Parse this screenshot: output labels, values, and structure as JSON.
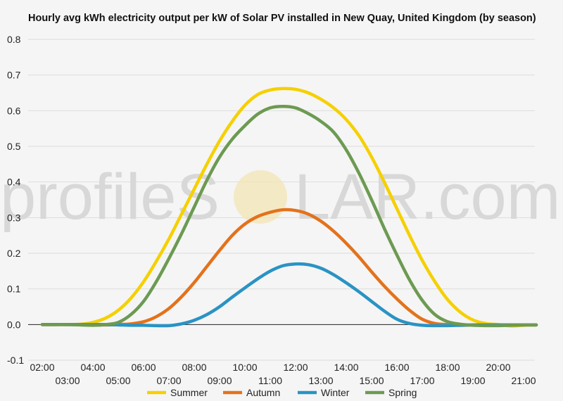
{
  "title": "Hourly avg kWh electricity output per kW of Solar PV installed in New Quay, United Kingdom (by season)",
  "watermark": {
    "left": "profileS",
    "right": "LAR.com"
  },
  "chart_data": {
    "type": "line",
    "title": "Hourly avg kWh electricity output per kW of Solar PV installed in New Quay, United Kingdom (by season)",
    "xlabel": "",
    "ylabel": "",
    "ylim": [
      -0.1,
      0.8
    ],
    "xlim": [
      2,
      21.5
    ],
    "y_ticks": [
      "-0.1",
      "0.0",
      "0.1",
      "0.2",
      "0.3",
      "0.4",
      "0.5",
      "0.6",
      "0.7",
      "0.8"
    ],
    "x_ticks": [
      "02:00",
      "03:00",
      "04:00",
      "05:00",
      "06:00",
      "07:00",
      "08:00",
      "09:00",
      "10:00",
      "11:00",
      "12:00",
      "13:00",
      "14:00",
      "15:00",
      "16:00",
      "17:00",
      "18:00",
      "19:00",
      "20:00",
      "21:00"
    ],
    "grid": true,
    "legend_position": "bottom",
    "x": [
      2,
      2.5,
      3,
      3.5,
      4,
      4.5,
      5,
      5.5,
      6,
      6.5,
      7,
      7.5,
      8,
      8.5,
      9,
      9.5,
      10,
      10.5,
      11,
      11.5,
      12,
      12.5,
      13,
      13.5,
      14,
      14.5,
      15,
      15.5,
      16,
      16.5,
      17,
      17.5,
      18,
      18.5,
      19,
      19.5,
      20,
      20.5,
      21,
      21.5
    ],
    "series": [
      {
        "name": "Summer",
        "color": "#f5d000",
        "values": [
          0,
          0,
          0,
          0.001,
          0.006,
          0.018,
          0.04,
          0.074,
          0.12,
          0.177,
          0.24,
          0.31,
          0.38,
          0.45,
          0.515,
          0.57,
          0.615,
          0.645,
          0.658,
          0.662,
          0.66,
          0.65,
          0.632,
          0.608,
          0.575,
          0.53,
          0.47,
          0.4,
          0.325,
          0.25,
          0.18,
          0.12,
          0.07,
          0.035,
          0.013,
          0.003,
          0,
          -0.004,
          -0.002,
          -0.001
        ]
      },
      {
        "name": "Autumn",
        "color": "#e3721c",
        "values": [
          0,
          0,
          0,
          0,
          -0.001,
          -0.001,
          0,
          0.002,
          0.008,
          0.022,
          0.045,
          0.078,
          0.118,
          0.163,
          0.208,
          0.25,
          0.282,
          0.303,
          0.315,
          0.322,
          0.32,
          0.31,
          0.29,
          0.262,
          0.228,
          0.19,
          0.148,
          0.108,
          0.072,
          0.04,
          0.015,
          0.003,
          0,
          -0.002,
          -0.001,
          -0.001,
          -0.001,
          -0.001,
          -0.001,
          -0.001
        ]
      },
      {
        "name": "Winter",
        "color": "#2a93c4",
        "values": [
          0,
          0,
          0,
          0,
          0,
          0,
          -0.001,
          -0.002,
          -0.002,
          -0.003,
          -0.003,
          0.002,
          0.012,
          0.028,
          0.05,
          0.077,
          0.103,
          0.128,
          0.15,
          0.165,
          0.17,
          0.168,
          0.158,
          0.14,
          0.117,
          0.092,
          0.065,
          0.038,
          0.015,
          0.003,
          -0.002,
          -0.003,
          -0.003,
          -0.002,
          -0.001,
          -0.001,
          -0.001,
          -0.001,
          -0.001,
          -0.001
        ]
      },
      {
        "name": "Spring",
        "color": "#6c9a52",
        "values": [
          0,
          0,
          0,
          -0.001,
          -0.002,
          0,
          0.006,
          0.028,
          0.065,
          0.12,
          0.185,
          0.255,
          0.33,
          0.405,
          0.47,
          0.52,
          0.558,
          0.59,
          0.608,
          0.612,
          0.608,
          0.592,
          0.57,
          0.54,
          0.49,
          0.425,
          0.35,
          0.27,
          0.195,
          0.125,
          0.068,
          0.028,
          0.008,
          0.001,
          -0.002,
          -0.003,
          -0.003,
          -0.002,
          -0.001,
          -0.001
        ]
      }
    ]
  }
}
